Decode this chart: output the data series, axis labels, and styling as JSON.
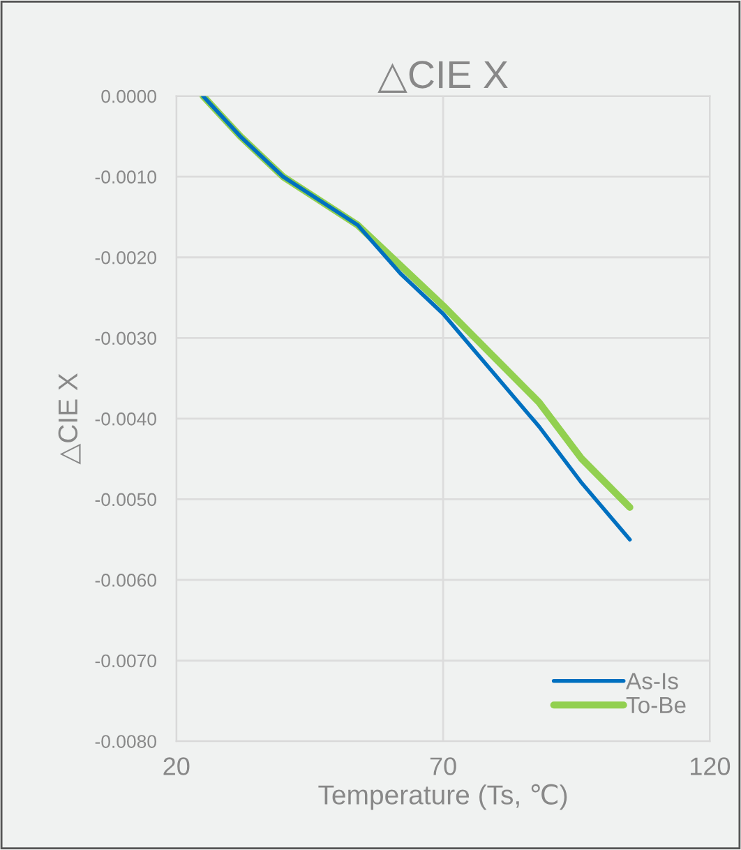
{
  "chart_data": {
    "type": "line",
    "title": "△CIE X",
    "xlabel": "Temperature (Ts, ℃)",
    "ylabel": "△CIE X",
    "x": [
      25,
      32,
      40,
      54,
      62,
      70,
      79,
      88,
      96,
      105
    ],
    "series": [
      {
        "name": "As-Is",
        "color": "#0070c0",
        "values": [
          0,
          -0.0005,
          -0.001,
          -0.0016,
          -0.0022,
          -0.0027,
          -0.0034,
          -0.0041,
          -0.0048,
          -0.0055
        ]
      },
      {
        "name": "To-Be",
        "color": "#92d050",
        "values": [
          0,
          -0.0005,
          -0.001,
          -0.0016,
          -0.0021,
          -0.0026,
          -0.0032,
          -0.0038,
          -0.0045,
          -0.0051
        ]
      }
    ],
    "xlim": [
      20,
      120
    ],
    "xticks": [
      20,
      70,
      120
    ],
    "ylim": [
      -0.008,
      0
    ],
    "yticks": [
      {
        "value": 0,
        "label": "0.0000"
      },
      {
        "value": -0.001,
        "label": "-0.0010"
      },
      {
        "value": -0.002,
        "label": "-0.0020"
      },
      {
        "value": -0.003,
        "label": "-0.0030"
      },
      {
        "value": -0.004,
        "label": "-0.0040"
      },
      {
        "value": -0.005,
        "label": "-0.0050"
      },
      {
        "value": -0.006,
        "label": "-0.0060"
      },
      {
        "value": -0.007,
        "label": "-0.0070"
      },
      {
        "value": -0.008,
        "label": "-0.0080"
      }
    ],
    "grid": true,
    "legend": "bottom right",
    "marker": "none",
    "line_style": "solid"
  }
}
